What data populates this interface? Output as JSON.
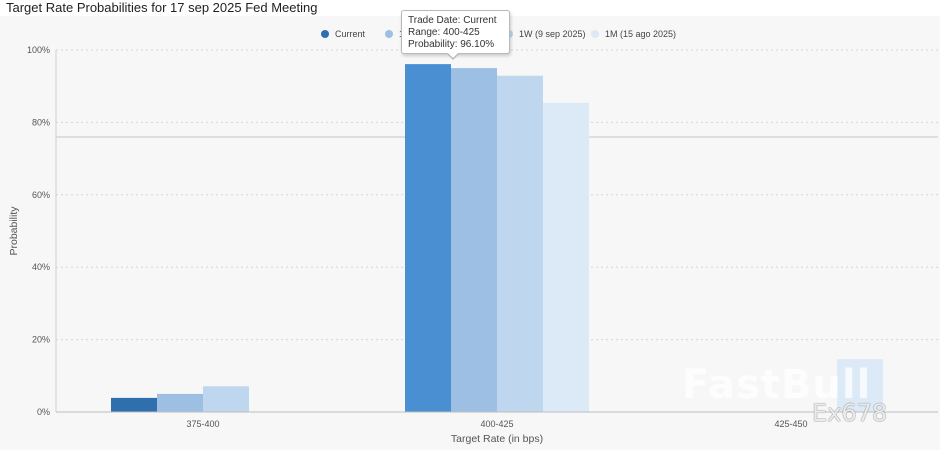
{
  "chart_data": {
    "type": "bar",
    "title": "Target Rate Probabilities for 17 sep 2025 Fed Meeting",
    "xlabel": "Target Rate (in bps)",
    "ylabel": "Probability",
    "ylim": [
      0,
      100
    ],
    "yticks": [
      "0%",
      "20%",
      "40%",
      "60%",
      "80%",
      "100%"
    ],
    "categories": [
      "375-400",
      "400-425",
      "425-450"
    ],
    "series": [
      {
        "name": "Current",
        "color": "#2f6fae",
        "values": [
          3.9,
          96.1,
          0
        ]
      },
      {
        "name": "1D (15 sep 2025)",
        "color": "#9dbfe3",
        "values": [
          5.0,
          95.0,
          0
        ]
      },
      {
        "name": "1W (9 sep 2025)",
        "color": "#bed7ee",
        "values": [
          7.1,
          92.9,
          0
        ]
      },
      {
        "name": "1M (15 ago 2025)",
        "color": "#dce9f6",
        "values": [
          0,
          85.4,
          14.6
        ]
      }
    ],
    "highlight_color": "#4a8fd2",
    "legend": [
      {
        "label": "Current",
        "color": "#2f6fae"
      },
      {
        "label": "1D (15 sep 2025)",
        "color": "#9dbfe3"
      },
      {
        "label": "1W (9 sep 2025)",
        "color": "#bed7ee"
      },
      {
        "label": "1M (15 ago 2025)",
        "color": "#dce9f6"
      }
    ],
    "grid": true,
    "legend_position": "top-center"
  },
  "tooltip": {
    "line1": "Trade Date: Current",
    "line2": "Range: 400-425",
    "line3": "Probability: 96.10%"
  },
  "watermark": {
    "brand": "FastBull",
    "code": "Ex678"
  }
}
